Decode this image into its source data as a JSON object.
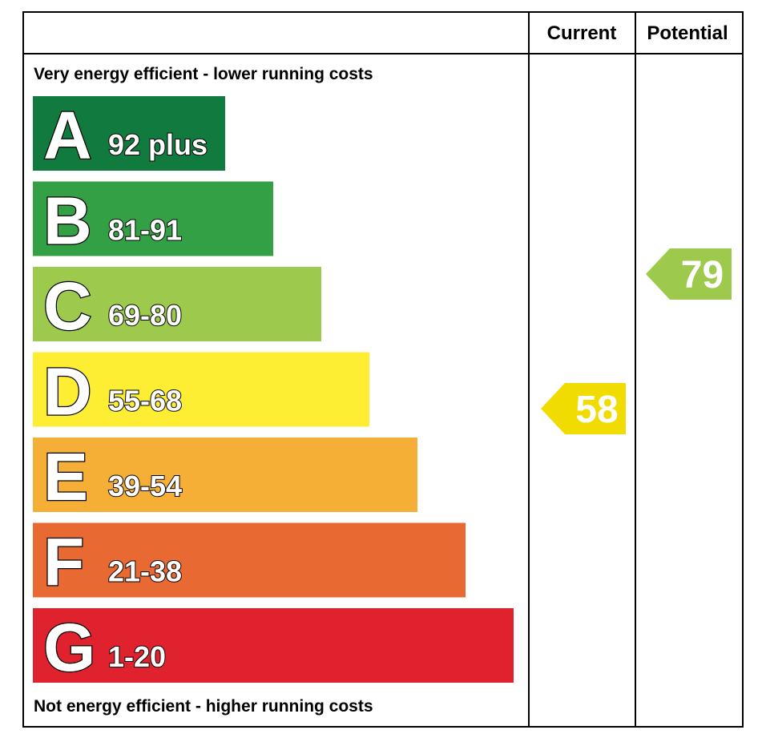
{
  "chart_data": {
    "type": "bar",
    "headers": {
      "current": "Current",
      "potential": "Potential"
    },
    "top_note": "Very energy efficient - lower running costs",
    "bottom_note": "Not energy efficient - higher running costs",
    "bands": [
      {
        "letter": "A",
        "range": "92 plus",
        "color": "#117a3e"
      },
      {
        "letter": "B",
        "range": "81-91",
        "color": "#33a046"
      },
      {
        "letter": "C",
        "range": "69-80",
        "color": "#9dca4c"
      },
      {
        "letter": "D",
        "range": "55-68",
        "color": "#fdee33"
      },
      {
        "letter": "E",
        "range": "39-54",
        "color": "#f5af36"
      },
      {
        "letter": "F",
        "range": "21-38",
        "color": "#e96932"
      },
      {
        "letter": "G",
        "range": "1-20",
        "color": "#e0212e"
      }
    ],
    "current": {
      "value": "58",
      "band": "D",
      "color": "#f0dc00"
    },
    "potential": {
      "value": "79",
      "band": "C",
      "color": "#9dca4c"
    }
  }
}
